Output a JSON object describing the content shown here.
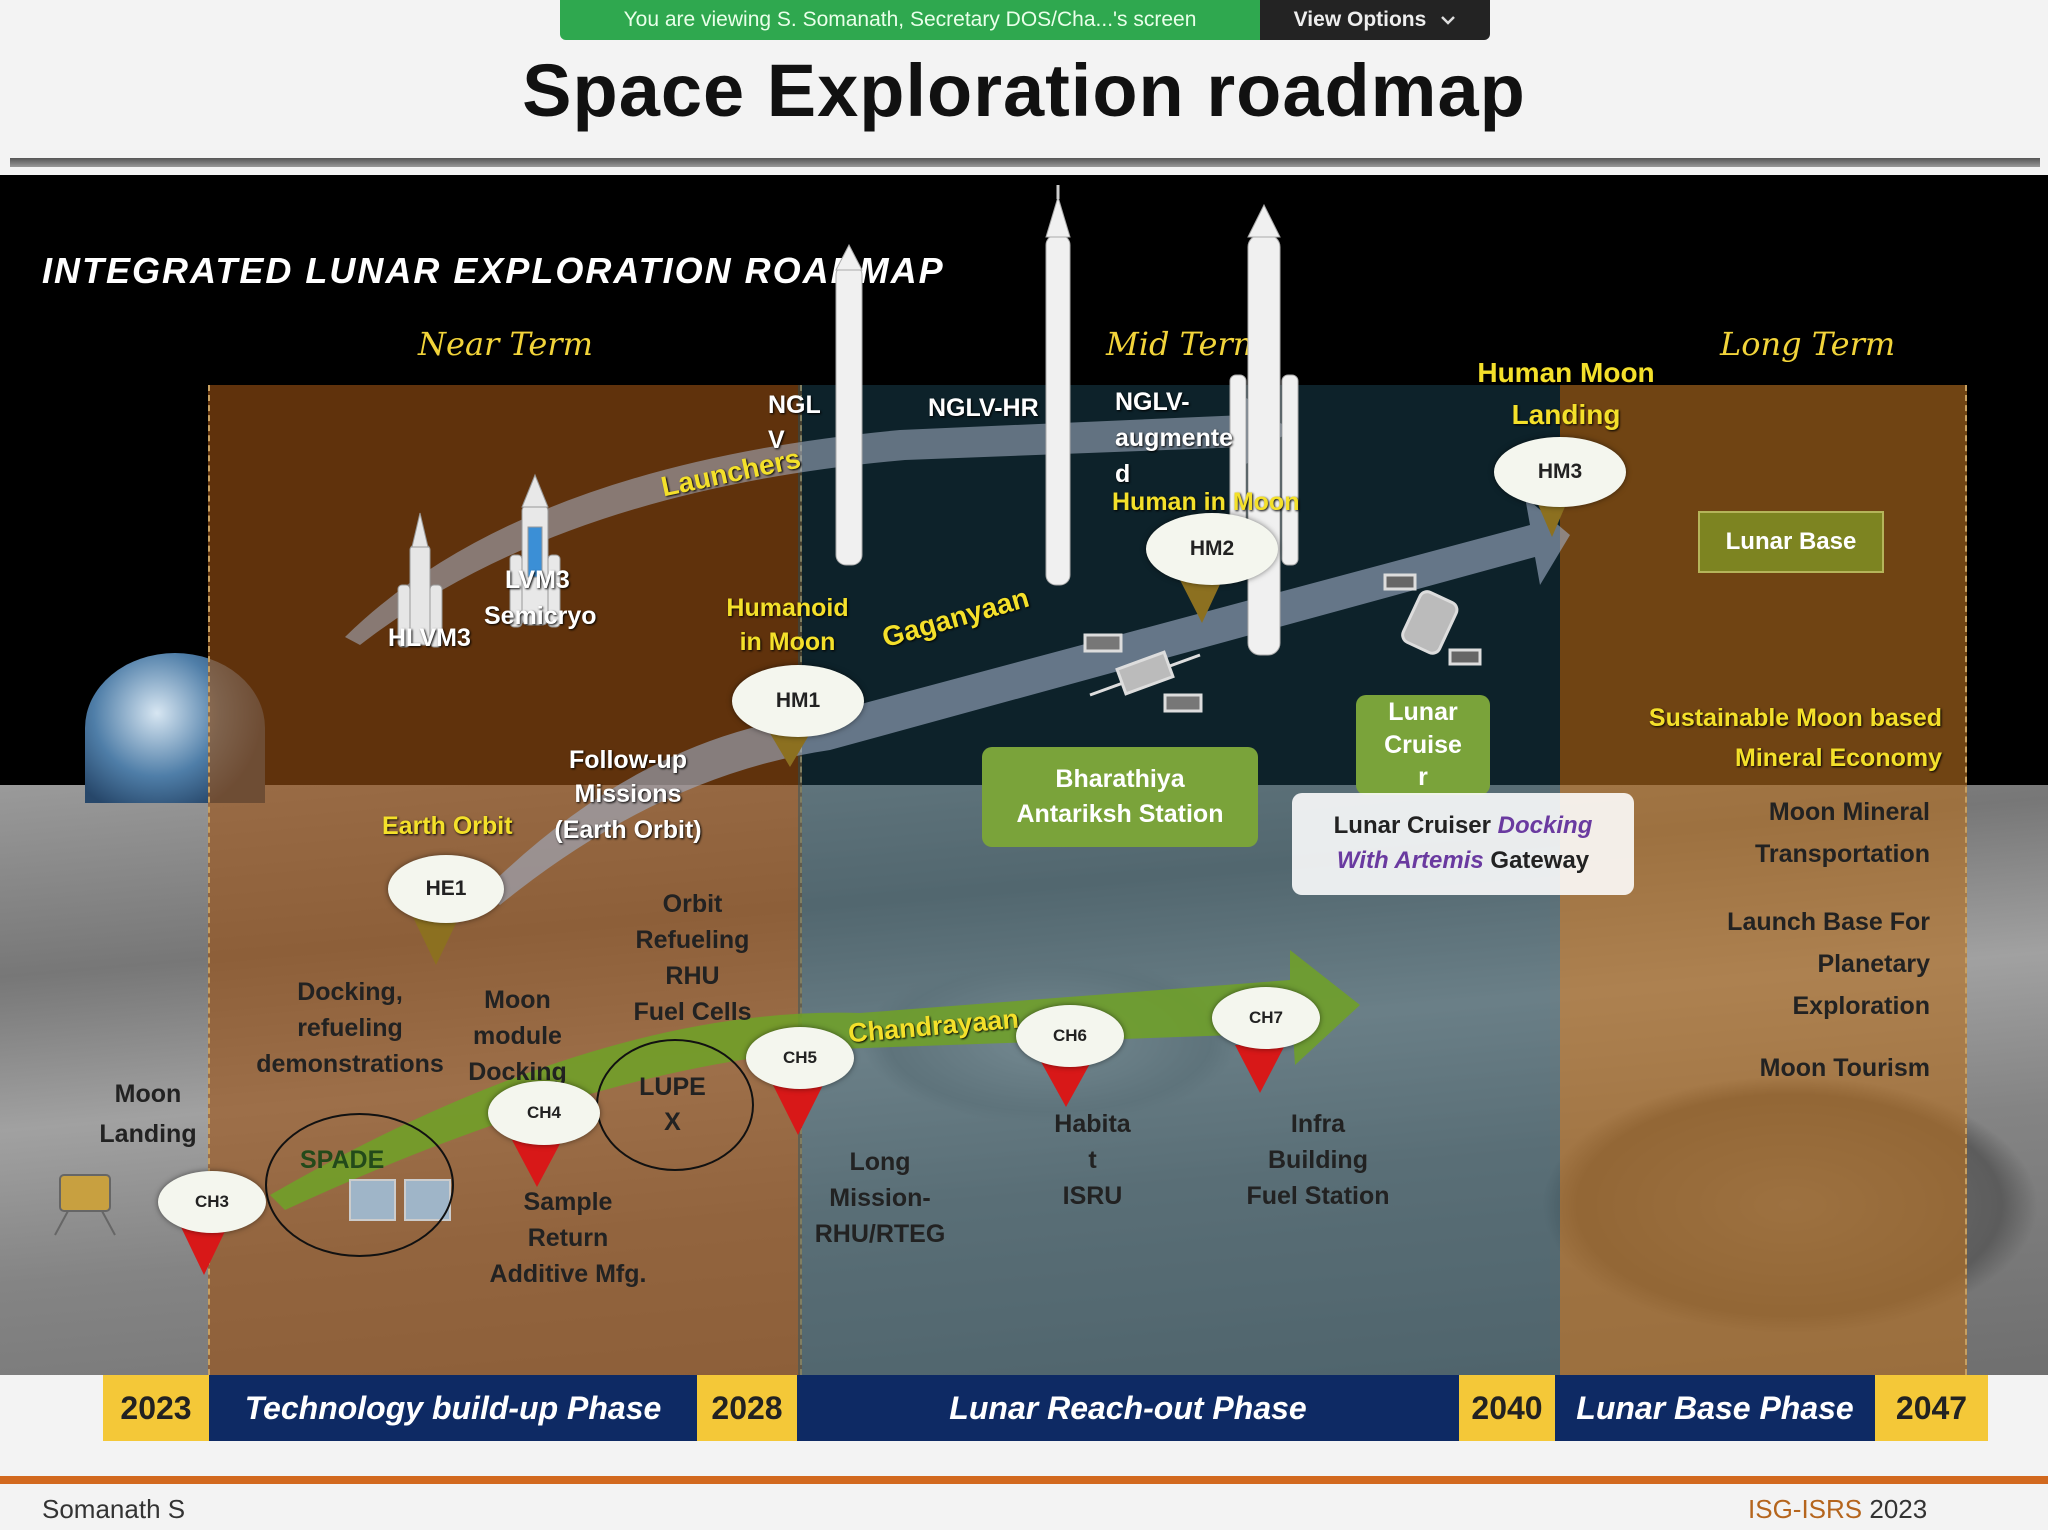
{
  "share_bar": {
    "viewing_text": "You are viewing S. Somanath, Secretary DOS/Cha...'s screen",
    "view_options_label": "View Options",
    "chevron_icon": "chevron-down-icon"
  },
  "slide": {
    "title": "Space Exploration roadmap",
    "heading": "INTEGRATED LUNAR EXPLORATION ROADMAP",
    "terms": {
      "near": "Near Term",
      "mid": "Mid Term",
      "long": "Long Term"
    },
    "launchers": {
      "arrow_label": "Launchers",
      "hlvm3": "HLVM3",
      "lvm3": "LVM3",
      "lvm3_sub": "Semicryo",
      "nglv_a": "NGL",
      "nglv_b": "V",
      "nglv_hr": "NGLV-HR",
      "nglv_aug_a": "NGLV-",
      "nglv_aug_b": "augmente",
      "nglv_aug_c": "d"
    },
    "gaganyaan": {
      "arrow_label": "Gaganyaan",
      "human_moon_landing_a": "Human Moon",
      "human_moon_landing_b": "Landing",
      "human_in_moon": "Human in Moon",
      "humanoid_a": "Humanoid",
      "humanoid_b": "in Moon",
      "earth_orbit": "Earth Orbit",
      "followup_a": "Follow-up",
      "followup_b": "Missions",
      "followup_c": "(Earth Orbit)",
      "nodes": {
        "he1": "HE1",
        "hm1": "HM1",
        "hm2": "HM2",
        "hm3": "HM3"
      }
    },
    "chandrayaan": {
      "arrow_label": "Chandrayaan",
      "nodes": {
        "ch3": "CH3",
        "ch4": "CH4",
        "ch5": "CH5",
        "ch6": "CH6",
        "ch7": "CH7"
      },
      "moon_landing_a": "Moon",
      "moon_landing_b": "Landing",
      "docking_a": "Docking,",
      "docking_b": "refueling",
      "docking_c": "demonstrations",
      "module_a": "Moon",
      "module_b": "module",
      "module_c": "Docking",
      "orbit_a": "Orbit",
      "orbit_b": "Refueling",
      "orbit_c": "RHU",
      "orbit_d": "Fuel Cells",
      "spade": "SPADE",
      "lupex_a": "LUPE",
      "lupex_b": "X",
      "sample_a": "Sample",
      "sample_b": "Return",
      "sample_c": "Additive Mfg.",
      "long_a": "Long",
      "long_b": "Mission-",
      "long_c": "RHU/RTEG",
      "habitat_a": "Habita",
      "habitat_b": "t",
      "habitat_c": "ISRU",
      "infra_a": "Infra",
      "infra_b": "Building",
      "infra_c": "Fuel Station"
    },
    "stations": {
      "bharathiya_a": "Bharathiya",
      "bharathiya_b": "Antariksh Station",
      "cruiser_a": "Lunar",
      "cruiser_b": "Cruise",
      "cruiser_c": "r",
      "artemis_a": "Lunar Cruiser ",
      "artemis_b": "Docking",
      "artemis_c": "With Artemis",
      "artemis_d": " Gateway"
    },
    "long_term": {
      "lunar_base": "Lunar Base",
      "economy_a": "Sustainable Moon based",
      "economy_b": "Mineral Economy",
      "mineral_a": "Moon Mineral",
      "mineral_b": "Transportation",
      "launch_a": "Launch Base For",
      "launch_b": "Planetary",
      "launch_c": "Exploration",
      "tourism": "Moon Tourism"
    },
    "phases": [
      {
        "year": "2023",
        "phase": "Technology build-up Phase"
      },
      {
        "year": "2028",
        "phase": "Lunar Reach-out Phase"
      },
      {
        "year": "2040",
        "phase": "Lunar Base Phase"
      },
      {
        "year": "2047"
      }
    ],
    "presenter": "Somanath S",
    "conference": "ISG-ISRS",
    "conference_year": "2023"
  },
  "colors": {
    "share_green": "#2fa84f",
    "phase_navy": "#0e2a64",
    "year_gold": "#f4c838",
    "footer_orange": "#d2691e",
    "node_red": "#d81818",
    "node_olive": "#8c7020"
  }
}
